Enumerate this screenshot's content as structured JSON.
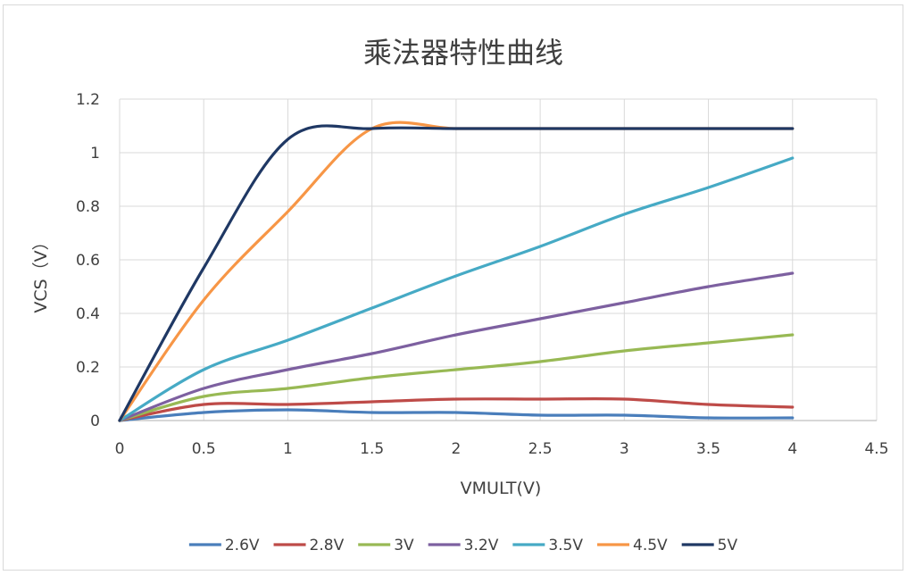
{
  "chart_data": {
    "type": "line",
    "title": "乘法器特性曲线",
    "xlabel": "VMULT(V)",
    "ylabel": "VCS（V）",
    "xlim": [
      0,
      4.5
    ],
    "ylim": [
      0,
      1.2
    ],
    "x_ticks": [
      "0",
      "0.5",
      "1",
      "1.5",
      "2",
      "2.5",
      "3",
      "3.5",
      "4",
      "4.5"
    ],
    "y_ticks": [
      "0",
      "0.2",
      "0.4",
      "0.6",
      "0.8",
      "1",
      "1.2"
    ],
    "grid": true,
    "legend_position": "bottom",
    "series": [
      {
        "name": "2.6V",
        "color": "#4a7ebb",
        "x": [
          0,
          0.5,
          1,
          1.5,
          2,
          2.5,
          3,
          3.5,
          4
        ],
        "y": [
          0,
          0.03,
          0.04,
          0.03,
          0.03,
          0.02,
          0.02,
          0.01,
          0.01
        ]
      },
      {
        "name": "2.8V",
        "color": "#be4b48",
        "x": [
          0,
          0.5,
          1,
          1.5,
          2,
          2.5,
          3,
          3.5,
          4
        ],
        "y": [
          0,
          0.06,
          0.06,
          0.07,
          0.08,
          0.08,
          0.08,
          0.06,
          0.05
        ]
      },
      {
        "name": "3V",
        "color": "#98b954",
        "x": [
          0,
          0.5,
          1,
          1.5,
          2,
          2.5,
          3,
          3.5,
          4
        ],
        "y": [
          0,
          0.09,
          0.12,
          0.16,
          0.19,
          0.22,
          0.26,
          0.29,
          0.32
        ]
      },
      {
        "name": "3.2V",
        "color": "#7d60a0",
        "x": [
          0,
          0.5,
          1,
          1.5,
          2,
          2.5,
          3,
          3.5,
          4
        ],
        "y": [
          0,
          0.12,
          0.19,
          0.25,
          0.32,
          0.38,
          0.44,
          0.5,
          0.55
        ]
      },
      {
        "name": "3.5V",
        "color": "#46aac5",
        "x": [
          0,
          0.5,
          1,
          1.5,
          2,
          2.5,
          3,
          3.5,
          4
        ],
        "y": [
          0,
          0.19,
          0.3,
          0.42,
          0.54,
          0.65,
          0.77,
          0.87,
          0.98
        ]
      },
      {
        "name": "4.5V",
        "color": "#f79646",
        "x": [
          0,
          0.5,
          1,
          1.5,
          2,
          2.5,
          3,
          3.5,
          4
        ],
        "y": [
          0,
          0.45,
          0.78,
          1.09,
          1.09,
          1.09,
          1.09,
          1.09,
          1.09
        ]
      },
      {
        "name": "5V",
        "color": "#1f3864",
        "x": [
          0,
          0.5,
          1,
          1.5,
          2,
          2.5,
          3,
          3.5,
          4
        ],
        "y": [
          0,
          0.57,
          1.05,
          1.09,
          1.09,
          1.09,
          1.09,
          1.09,
          1.09
        ]
      }
    ]
  }
}
